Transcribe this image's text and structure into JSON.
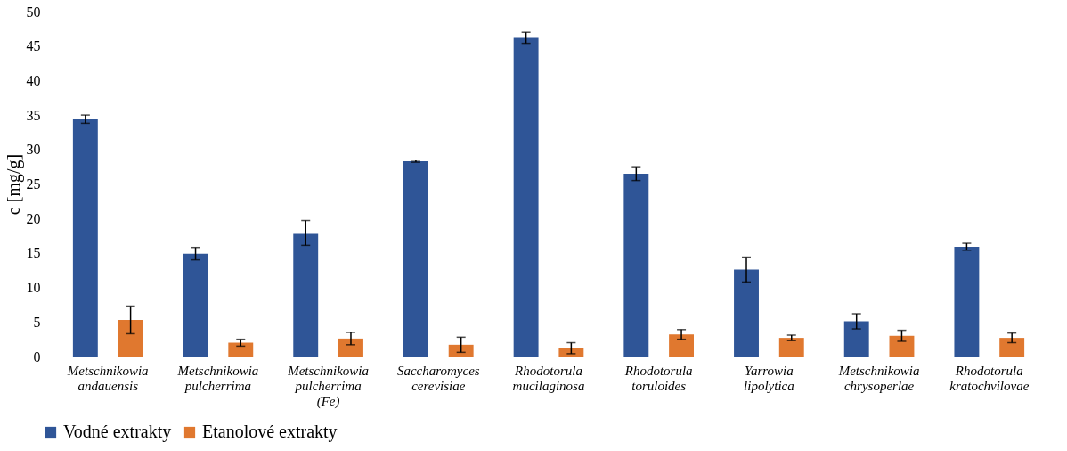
{
  "chart_data": {
    "type": "bar",
    "ylabel": "c [mg/g]",
    "categories": [
      "Metschnikowia andauensis",
      "Metschnikowia pulcherrima",
      "Metschnikowia pulcherrima (Fe)",
      "Saccharomyces cerevisiae",
      "Rhodotorula mucilaginosa",
      "Rhodotorula toruloides",
      "Yarrowia lipolytica",
      "Metschnikowia chrysoperlae",
      "Rhodotorula kratochvilovae"
    ],
    "series": [
      {
        "name": "Vodné extrakty",
        "color": "#2f5597",
        "values": [
          34.4,
          14.9,
          17.9,
          28.3,
          46.2,
          26.5,
          12.6,
          5.1,
          15.9
        ],
        "errors": [
          0.6,
          0.9,
          1.8,
          0.15,
          0.8,
          1.0,
          1.8,
          1.1,
          0.5
        ]
      },
      {
        "name": "Etanolové extrakty",
        "color": "#e0782f",
        "values": [
          5.3,
          2.0,
          2.6,
          1.7,
          1.2,
          3.2,
          2.7,
          3.0,
          2.7
        ],
        "errors": [
          2.0,
          0.5,
          0.9,
          1.1,
          0.8,
          0.7,
          0.4,
          0.8,
          0.7
        ]
      }
    ],
    "ylim": [
      0,
      50
    ],
    "yticks": [
      0,
      5,
      10,
      15,
      20,
      25,
      30,
      35,
      40,
      45,
      50
    ],
    "grid": false,
    "legend": "bottom"
  }
}
